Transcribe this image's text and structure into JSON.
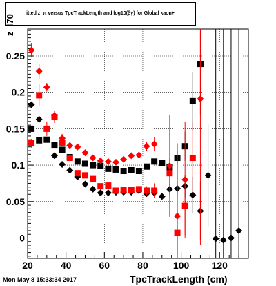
{
  "title_text": "itted  z_π versus TpcTrackLength and log10(βγ) for Global kaon+",
  "timestamp": "Mon May  8 15:33:34 2017",
  "chart_data": {
    "type": "scatter",
    "title": "itted  z_π versus TpcTrackLength and log10(βγ) for Global kaon+",
    "xlabel": "TpcTrackLength (cm)",
    "ylabel": "z_l70",
    "xlim": [
      20,
      135
    ],
    "ylim": [
      -0.028,
      0.287
    ],
    "x_ticks": [
      20,
      40,
      60,
      80,
      100,
      120
    ],
    "x_tick_labels": [
      "20",
      "40",
      "60",
      "80",
      "100",
      "120"
    ],
    "y_ticks": [
      0,
      0.05,
      0.1,
      0.15,
      0.2,
      0.25
    ],
    "y_tick_labels": [
      "0",
      "0.05",
      "0.1",
      "0.15",
      "0.2",
      "0.25"
    ],
    "grid": true,
    "series": [
      {
        "marker": "diamond",
        "color": "#000000",
        "points": [
          {
            "x": 22,
            "y": 0.183,
            "err": 0.002
          },
          {
            "x": 26,
            "y": 0.163,
            "err": 0.002
          },
          {
            "x": 34,
            "y": 0.113,
            "err": 0.001
          },
          {
            "x": 38,
            "y": 0.101,
            "err": 0.001
          },
          {
            "x": 42,
            "y": 0.093,
            "err": 0.001
          },
          {
            "x": 46,
            "y": 0.084,
            "err": 0.001
          },
          {
            "x": 50,
            "y": 0.074,
            "err": 0.001
          },
          {
            "x": 54,
            "y": 0.067,
            "err": 0.001
          },
          {
            "x": 58,
            "y": 0.062,
            "err": 0.001
          },
          {
            "x": 62,
            "y": 0.062,
            "err": 0.001
          },
          {
            "x": 66,
            "y": 0.063,
            "err": 0.001
          },
          {
            "x": 70,
            "y": 0.063,
            "err": 0.001
          },
          {
            "x": 74,
            "y": 0.063,
            "err": 0.001
          },
          {
            "x": 78,
            "y": 0.065,
            "err": 0.001
          },
          {
            "x": 82,
            "y": 0.061,
            "err": 0.002
          },
          {
            "x": 86,
            "y": 0.062,
            "err": 0.003
          },
          {
            "x": 90,
            "y": 0.057,
            "err": 0.004
          },
          {
            "x": 94,
            "y": 0.067,
            "err": 0.007
          },
          {
            "x": 98,
            "y": 0.068,
            "err": 0.01
          },
          {
            "x": 102,
            "y": 0.071,
            "err": 0.015
          },
          {
            "x": 106,
            "y": 0.059,
            "err": 0.025
          },
          {
            "x": 110,
            "y": 0.037,
            "err": 0.04
          },
          {
            "x": 114,
            "y": 0.086,
            "err": 0.07
          },
          {
            "x": 118,
            "y": -0.001,
            "err": 0.3
          },
          {
            "x": 122,
            "y": -0.003,
            "err": 0.3
          },
          {
            "x": 126,
            "y": 0.0,
            "err": 0.3
          },
          {
            "x": 130,
            "y": 0.01,
            "err": 0.3
          }
        ]
      },
      {
        "marker": "square",
        "color": "#000000",
        "points": [
          {
            "x": 22,
            "y": 0.15,
            "err": 0.002
          },
          {
            "x": 26,
            "y": 0.134,
            "err": 0.002
          },
          {
            "x": 30,
            "y": 0.135,
            "err": 0.002
          },
          {
            "x": 34,
            "y": 0.128,
            "err": 0.002
          },
          {
            "x": 38,
            "y": 0.121,
            "err": 0.001
          },
          {
            "x": 42,
            "y": 0.111,
            "err": 0.001
          },
          {
            "x": 46,
            "y": 0.105,
            "err": 0.001
          },
          {
            "x": 50,
            "y": 0.102,
            "err": 0.001
          },
          {
            "x": 54,
            "y": 0.1,
            "err": 0.001
          },
          {
            "x": 58,
            "y": 0.099,
            "err": 0.001
          },
          {
            "x": 62,
            "y": 0.095,
            "err": 0.001
          },
          {
            "x": 66,
            "y": 0.094,
            "err": 0.001
          },
          {
            "x": 70,
            "y": 0.092,
            "err": 0.001
          },
          {
            "x": 74,
            "y": 0.093,
            "err": 0.001
          },
          {
            "x": 78,
            "y": 0.092,
            "err": 0.002
          },
          {
            "x": 82,
            "y": 0.098,
            "err": 0.002
          },
          {
            "x": 86,
            "y": 0.105,
            "err": 0.003
          },
          {
            "x": 90,
            "y": 0.103,
            "err": 0.004
          },
          {
            "x": 94,
            "y": 0.097,
            "err": 0.006
          },
          {
            "x": 98,
            "y": 0.11,
            "err": 0.01
          },
          {
            "x": 102,
            "y": 0.126,
            "err": 0.02
          },
          {
            "x": 106,
            "y": 0.188,
            "err": 0.04
          },
          {
            "x": 110,
            "y": 0.239,
            "err": 0.07
          }
        ]
      },
      {
        "marker": "diamond",
        "color": "#ff0000",
        "points": [
          {
            "x": 22,
            "y": 0.258,
            "err": 0.01
          },
          {
            "x": 26,
            "y": 0.229,
            "err": 0.01
          },
          {
            "x": 30,
            "y": 0.207,
            "err": 0.006
          },
          {
            "x": 34,
            "y": 0.168,
            "err": 0.006
          },
          {
            "x": 38,
            "y": 0.137,
            "err": 0.006
          },
          {
            "x": 42,
            "y": 0.127,
            "err": 0.003
          },
          {
            "x": 46,
            "y": 0.125,
            "err": 0.002
          },
          {
            "x": 50,
            "y": 0.117,
            "err": 0.002
          },
          {
            "x": 54,
            "y": 0.11,
            "err": 0.002
          },
          {
            "x": 58,
            "y": 0.106,
            "err": 0.002
          },
          {
            "x": 62,
            "y": 0.105,
            "err": 0.002
          },
          {
            "x": 66,
            "y": 0.104,
            "err": 0.002
          },
          {
            "x": 70,
            "y": 0.108,
            "err": 0.002
          },
          {
            "x": 74,
            "y": 0.113,
            "err": 0.003
          },
          {
            "x": 78,
            "y": 0.114,
            "err": 0.004
          },
          {
            "x": 82,
            "y": 0.126,
            "err": 0.006
          },
          {
            "x": 86,
            "y": 0.129,
            "err": 0.01
          },
          {
            "x": 94,
            "y": 0.099,
            "err": 0.07
          },
          {
            "x": 98,
            "y": 0.03,
            "err": 0.1
          },
          {
            "x": 102,
            "y": 0.08,
            "err": 0.08
          },
          {
            "x": 110,
            "y": 0.191,
            "err": 0.2
          }
        ]
      },
      {
        "marker": "square",
        "color": "#ff0000",
        "points": [
          {
            "x": 22,
            "y": 0.13,
            "err": 0.006
          },
          {
            "x": 26,
            "y": 0.196,
            "err": 0.015
          },
          {
            "x": 30,
            "y": 0.15,
            "err": 0.01
          },
          {
            "x": 34,
            "y": 0.166,
            "err": 0.008
          },
          {
            "x": 38,
            "y": 0.131,
            "err": 0.005
          },
          {
            "x": 42,
            "y": 0.11,
            "err": 0.003
          },
          {
            "x": 46,
            "y": 0.089,
            "err": 0.002
          },
          {
            "x": 50,
            "y": 0.086,
            "err": 0.002
          },
          {
            "x": 54,
            "y": 0.081,
            "err": 0.002
          },
          {
            "x": 58,
            "y": 0.071,
            "err": 0.002
          },
          {
            "x": 62,
            "y": 0.072,
            "err": 0.002
          },
          {
            "x": 66,
            "y": 0.065,
            "err": 0.002
          },
          {
            "x": 70,
            "y": 0.066,
            "err": 0.002
          },
          {
            "x": 74,
            "y": 0.066,
            "err": 0.003
          },
          {
            "x": 78,
            "y": 0.067,
            "err": 0.004
          },
          {
            "x": 82,
            "y": 0.065,
            "err": 0.006
          },
          {
            "x": 86,
            "y": 0.065,
            "err": 0.01
          },
          {
            "x": 94,
            "y": 0.089,
            "err": 0.02
          },
          {
            "x": 98,
            "y": 0.007,
            "err": 0.03
          },
          {
            "x": 102,
            "y": 0.044,
            "err": 0.04
          },
          {
            "x": 106,
            "y": 0.11,
            "err": 0.05
          }
        ]
      }
    ]
  }
}
